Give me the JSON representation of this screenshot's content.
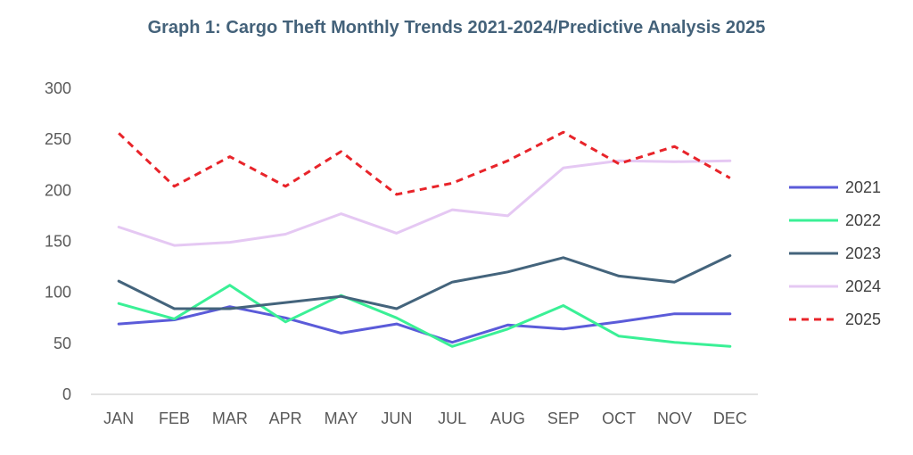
{
  "chart_data": {
    "type": "line",
    "title": "Graph 1: Cargo Theft Monthly Trends 2021-2024/Predictive Analysis 2025",
    "xlabel": "",
    "ylabel": "",
    "categories": [
      "JAN",
      "FEB",
      "MAR",
      "APR",
      "MAY",
      "JUN",
      "JUL",
      "AUG",
      "SEP",
      "OCT",
      "NOV",
      "DEC"
    ],
    "ylim": [
      0,
      300
    ],
    "yticks": [
      0,
      50,
      100,
      150,
      200,
      250,
      300
    ],
    "grid": false,
    "legend_position": "right",
    "series": [
      {
        "name": "2021",
        "color": "#5b5bd9",
        "dashed": false,
        "values": [
          69,
          73,
          86,
          75,
          60,
          69,
          51,
          68,
          64,
          71,
          79,
          79
        ]
      },
      {
        "name": "2022",
        "color": "#3af096",
        "dashed": false,
        "values": [
          89,
          74,
          107,
          71,
          97,
          75,
          47,
          64,
          87,
          57,
          51,
          47
        ]
      },
      {
        "name": "2023",
        "color": "#44647c",
        "dashed": false,
        "values": [
          111,
          84,
          84,
          90,
          96,
          84,
          110,
          120,
          134,
          116,
          110,
          136
        ]
      },
      {
        "name": "2024",
        "color": "#e5c8f3",
        "dashed": false,
        "values": [
          164,
          146,
          149,
          157,
          177,
          158,
          181,
          175,
          222,
          229,
          228,
          229
        ]
      },
      {
        "name": "2025",
        "color": "#e8242a",
        "dashed": true,
        "values": [
          256,
          204,
          233,
          204,
          238,
          196,
          207,
          229,
          257,
          226,
          243,
          212
        ]
      }
    ]
  }
}
